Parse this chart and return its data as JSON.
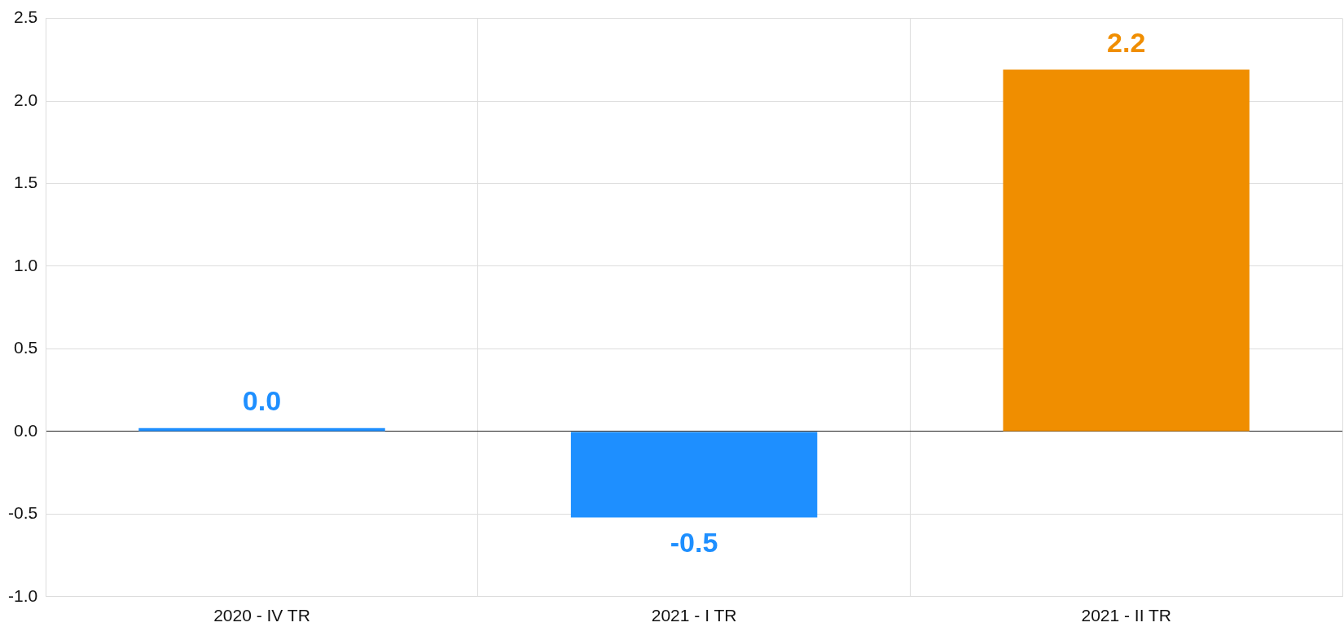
{
  "chart_data": {
    "type": "bar",
    "categories": [
      "2020 - IV TR",
      "2021 - I TR",
      "2021 - II TR"
    ],
    "values": [
      0.02,
      -0.52,
      2.19
    ],
    "colors": [
      "#1e8fff",
      "#1e8fff",
      "#f08e00"
    ],
    "value_labels": [
      "0.0",
      "-0.5",
      "2.2"
    ],
    "ylim": [
      -1.0,
      2.5
    ],
    "yticks": [
      {
        "value": -1.0,
        "label": "-1.0"
      },
      {
        "value": -0.5,
        "label": "-0.5"
      },
      {
        "value": 0,
        "label": "0.0"
      },
      {
        "value": 0.5,
        "label": "0.5"
      },
      {
        "value": 1.0,
        "label": "1.0"
      },
      {
        "value": 1.5,
        "label": "1.5"
      },
      {
        "value": 2.0,
        "label": "2.0"
      },
      {
        "value": 2.5,
        "label": "2.5"
      }
    ],
    "grid": true,
    "legend": false
  }
}
